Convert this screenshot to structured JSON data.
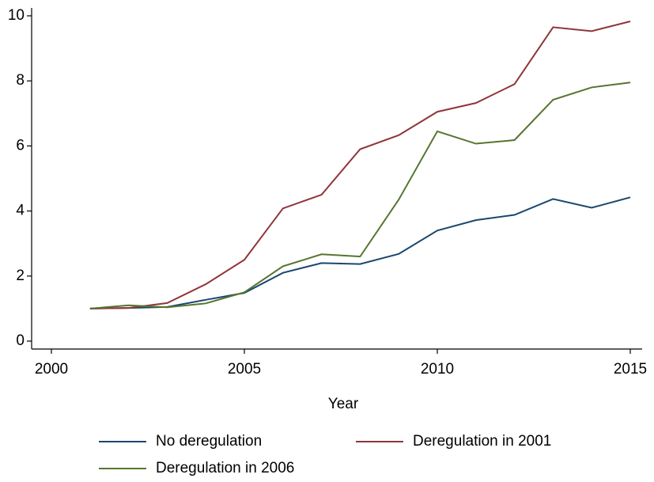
{
  "chart_data": {
    "type": "line",
    "x_label": "Year",
    "x": [
      2001,
      2002,
      2003,
      2004,
      2005,
      2006,
      2007,
      2008,
      2009,
      2010,
      2011,
      2012,
      2013,
      2014,
      2015
    ],
    "series": [
      {
        "name": "No deregulation",
        "color": "#1a476f",
        "values": [
          1.0,
          1.02,
          1.05,
          1.27,
          1.48,
          2.1,
          2.4,
          2.37,
          2.68,
          3.4,
          3.72,
          3.88,
          4.37,
          4.1,
          4.42
        ]
      },
      {
        "name": "Deregulation in 2001",
        "color": "#90353b",
        "values": [
          1.0,
          1.02,
          1.17,
          1.75,
          2.5,
          4.08,
          4.5,
          5.9,
          6.33,
          7.05,
          7.32,
          7.9,
          9.65,
          9.53,
          9.83
        ]
      },
      {
        "name": "Deregulation in 2006",
        "color": "#55752f",
        "values": [
          1.0,
          1.1,
          1.04,
          1.16,
          1.5,
          2.3,
          2.67,
          2.6,
          4.35,
          6.45,
          6.07,
          6.18,
          7.42,
          7.8,
          7.95
        ]
      }
    ],
    "xlim": [
      2000,
      2015
    ],
    "xticks": [
      2000,
      2005,
      2010,
      2015
    ],
    "ylim": [
      0,
      10
    ],
    "yticks": [
      0,
      2,
      4,
      6,
      8,
      10
    ]
  }
}
